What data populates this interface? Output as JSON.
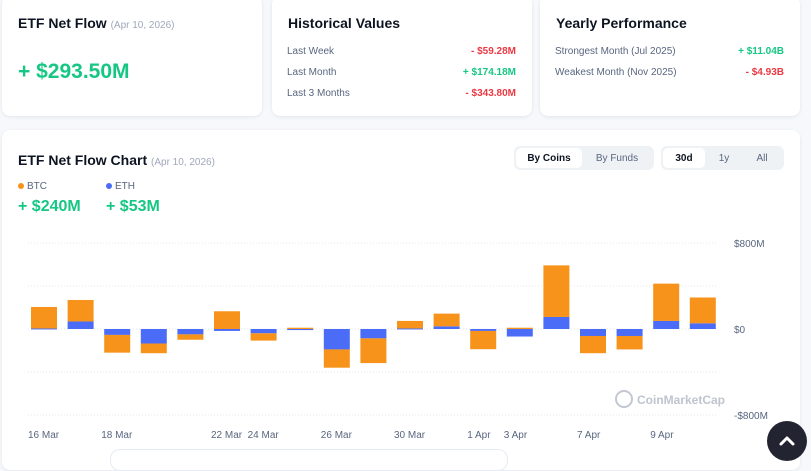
{
  "net_flow": {
    "title": "ETF Net Flow",
    "date": "(Apr 10, 2026)",
    "value": "+ $293.50M"
  },
  "historical": {
    "title": "Historical Values",
    "rows": [
      {
        "label": "Last Week",
        "value": "- $59.28M",
        "sign": "neg"
      },
      {
        "label": "Last Month",
        "value": "+ $174.18M",
        "sign": "pos"
      },
      {
        "label": "Last 3 Months",
        "value": "- $343.80M",
        "sign": "neg"
      }
    ]
  },
  "yearly": {
    "title": "Yearly Performance",
    "rows": [
      {
        "label": "Strongest Month (Jul 2025)",
        "value": "+ $11.04B",
        "sign": "pos"
      },
      {
        "label": "Weakest Month (Nov 2025)",
        "value": "- $4.93B",
        "sign": "neg"
      }
    ]
  },
  "chart_card": {
    "title": "ETF Net Flow Chart",
    "date": "(Apr 10, 2026)",
    "view_toggle": [
      "By Coins",
      "By Funds"
    ],
    "view_selected": "By Coins",
    "range_toggle": [
      "30d",
      "1y",
      "All"
    ],
    "range_selected": "30d",
    "legend": [
      {
        "name": "BTC",
        "value": "+ $240M",
        "color": "#f7931a"
      },
      {
        "name": "ETH",
        "value": "+ $53M",
        "color": "#4a6cf7"
      }
    ],
    "watermark": "CoinMarketCap"
  },
  "colors": {
    "positive": "#16c784",
    "negative": "#ea3943",
    "btc": "#f7931a",
    "eth": "#4a6cf7"
  },
  "chart_data": {
    "type": "bar",
    "stacked": true,
    "x_tick_labels": [
      {
        "index": 0,
        "label": "16 Mar"
      },
      {
        "index": 2,
        "label": "18 Mar"
      },
      {
        "index": 5,
        "label": "22 Mar"
      },
      {
        "index": 6,
        "label": "24 Mar"
      },
      {
        "index": 8,
        "label": "26 Mar"
      },
      {
        "index": 10,
        "label": "30 Mar"
      },
      {
        "index": 12,
        "label": "1 Apr"
      },
      {
        "index": 13,
        "label": "3 Apr"
      },
      {
        "index": 15,
        "label": "7 Apr"
      },
      {
        "index": 17,
        "label": "9 Apr"
      }
    ],
    "y_ticks": [
      "$800M",
      "$0",
      "-$800M"
    ],
    "ylim": [
      -800,
      800
    ],
    "y_unit": "M USD",
    "grid": true,
    "y_axis_side": "right",
    "series": [
      {
        "name": "BTC",
        "values": [
          200,
          200,
          -165,
          -90,
          -50,
          165,
          -68,
          12,
          -170,
          -230,
          70,
          118,
          -170,
          12,
          480,
          -160,
          -125,
          347,
          240
        ]
      },
      {
        "name": "ETH",
        "values": [
          5,
          70,
          -55,
          -135,
          -50,
          -18,
          -40,
          -10,
          -190,
          -87,
          5,
          25,
          -18,
          -70,
          112,
          -65,
          -65,
          75,
          53
        ]
      }
    ]
  },
  "scroll_top": "scroll-to-top"
}
